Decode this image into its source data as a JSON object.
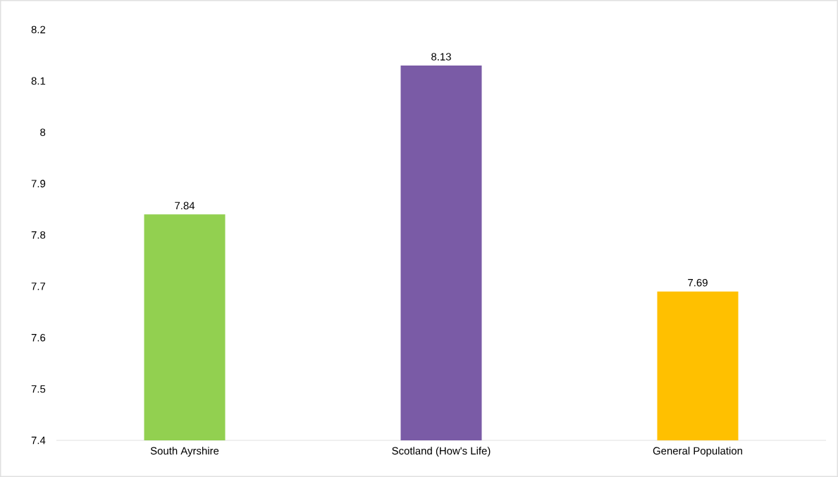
{
  "chart_data": {
    "type": "bar",
    "categories": [
      "South Ayrshire",
      "Scotland (How's Life)",
      "General Population"
    ],
    "values": [
      7.84,
      8.13,
      7.69
    ],
    "colors": [
      "#92d050",
      "#7a5ba6",
      "#ffc000"
    ],
    "ylim": [
      7.4,
      8.2
    ],
    "yticks": [
      7.4,
      7.5,
      7.6,
      7.7,
      7.8,
      7.9,
      8,
      8.1,
      8.2
    ],
    "data_labels": true
  }
}
